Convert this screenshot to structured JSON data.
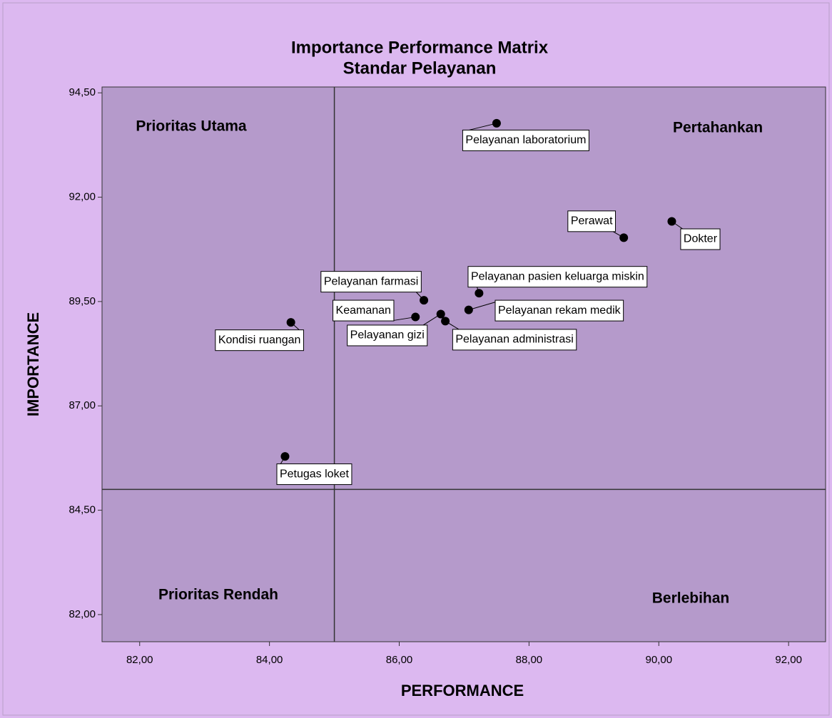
{
  "chart_data": {
    "type": "scatter",
    "title": "Importance Performance Matrix",
    "subtitle": "Standar Pelayanan",
    "x_label": "PERFORMANCE",
    "y_label": "IMPORTANCE",
    "color": "#000000",
    "xlim": [
      81.42,
      92.57
    ],
    "ylim": [
      81.35,
      94.64
    ],
    "xticks": [
      {
        "value": 82,
        "label": "82,00"
      },
      {
        "value": 84,
        "label": "84,00"
      },
      {
        "value": 86,
        "label": "86,00"
      },
      {
        "value": 88,
        "label": "88,00"
      },
      {
        "value": 90,
        "label": "90,00"
      },
      {
        "value": 92,
        "label": "92,00"
      }
    ],
    "yticks": [
      {
        "value": 82,
        "label": "82,00"
      },
      {
        "value": 84.5,
        "label": "84,50"
      },
      {
        "value": 87,
        "label": "87,00"
      },
      {
        "value": 89.5,
        "label": "89,50"
      },
      {
        "value": 92,
        "label": "92,00"
      },
      {
        "value": 94.5,
        "label": "94,50"
      }
    ],
    "reference_x": 85,
    "reference_y": 85,
    "quadrants": {
      "top_left": "Prioritas Utama",
      "top_right": "Pertahankan",
      "bottom_left": "Prioritas Rendah",
      "bottom_right": "Berlebihan"
    },
    "labels": [
      "Pelayanan laboratorium",
      "Dokter",
      "Perawat",
      "Pelayanan pasien keluarga miskin",
      "Pelayanan farmasi",
      "Pelayanan rekam medik",
      "Keamanan",
      "Pelayanan gizi",
      "Pelayanan administrasi",
      "Kondisi ruangan",
      "Petugas loket"
    ],
    "x": [
      87.5,
      90.2,
      89.46,
      87.23,
      86.38,
      87.07,
      86.25,
      86.64,
      86.71,
      84.33,
      84.24
    ],
    "y": [
      93.77,
      91.42,
      91.03,
      89.7,
      89.53,
      89.3,
      89.13,
      89.2,
      89.03,
      89.0,
      85.79
    ]
  }
}
